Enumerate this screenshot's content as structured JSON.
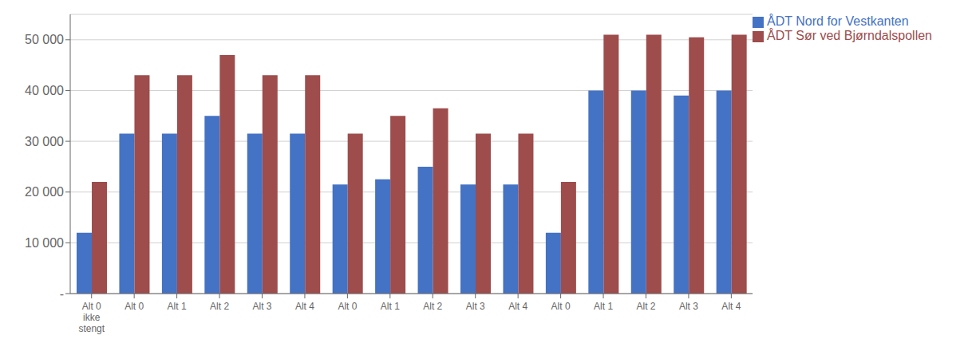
{
  "chart_data": {
    "type": "bar",
    "categories": [
      "Alt 0\nikke\nstengt",
      "Alt 0",
      "Alt 1",
      "Alt 2",
      "Alt 3",
      "Alt 4",
      "Alt 0",
      "Alt 1",
      "Alt 2",
      "Alt 3",
      "Alt 4",
      "Alt 0",
      "Alt 1",
      "Alt 2",
      "Alt 3",
      "Alt 4"
    ],
    "series": [
      {
        "name": "ÅDT Nord for Vestkanten",
        "color": "#4472C4",
        "values": [
          12000,
          31500,
          31500,
          35000,
          31500,
          31500,
          21500,
          22500,
          25000,
          21500,
          21500,
          12000,
          40000,
          40000,
          39000,
          40000
        ]
      },
      {
        "name": "ÅDT Sør ved Bjørndalspollen",
        "color": "#9E4C4C",
        "values": [
          22000,
          43000,
          43000,
          47000,
          43000,
          43000,
          31500,
          35000,
          36500,
          31500,
          31500,
          22000,
          51000,
          51000,
          50500,
          51000
        ]
      }
    ],
    "ylim": [
      0,
      55000
    ],
    "yticks": [
      {
        "value": 0,
        "label": "-"
      },
      {
        "value": 10000,
        "label": "10 000"
      },
      {
        "value": 20000,
        "label": "20 000"
      },
      {
        "value": 30000,
        "label": "30 000"
      },
      {
        "value": 40000,
        "label": "40 000"
      },
      {
        "value": 50000,
        "label": "50 000"
      }
    ],
    "grid": true,
    "legend": "upper right"
  }
}
